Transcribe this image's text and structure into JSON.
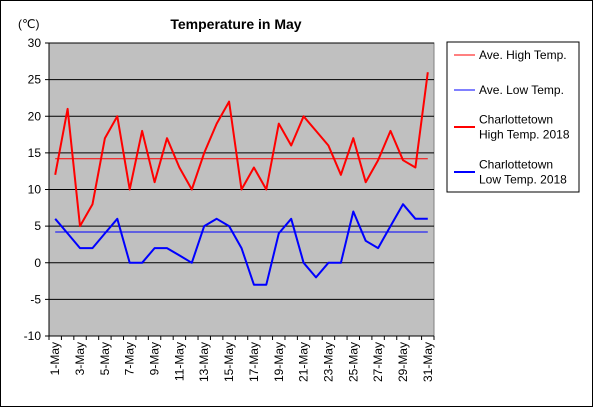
{
  "chart_data": {
    "type": "line",
    "title": "Temperature in May",
    "ylabel": "(℃)",
    "ylim": [
      -10,
      30
    ],
    "yticks": [
      30,
      25,
      20,
      15,
      10,
      5,
      0,
      -5,
      -10
    ],
    "grid": "horizontal",
    "legend_position": "right",
    "x_categories": [
      "1-May",
      "2-May",
      "3-May",
      "4-May",
      "5-May",
      "6-May",
      "7-May",
      "8-May",
      "9-May",
      "10-May",
      "11-May",
      "12-May",
      "13-May",
      "14-May",
      "15-May",
      "16-May",
      "17-May",
      "18-May",
      "19-May",
      "20-May",
      "21-May",
      "22-May",
      "23-May",
      "24-May",
      "25-May",
      "26-May",
      "27-May",
      "28-May",
      "29-May",
      "30-May",
      "31-May"
    ],
    "x_tick_labels": [
      "1-May",
      "3-May",
      "5-May",
      "7-May",
      "9-May",
      "11-May",
      "13-May",
      "15-May",
      "17-May",
      "19-May",
      "21-May",
      "23-May",
      "25-May",
      "27-May",
      "29-May",
      "31-May"
    ],
    "series": [
      {
        "name": "Ave. High Temp.",
        "color": "#ff0000",
        "stroke": "thin",
        "values": [
          14.2,
          14.2,
          14.2,
          14.2,
          14.2,
          14.2,
          14.2,
          14.2,
          14.2,
          14.2,
          14.2,
          14.2,
          14.2,
          14.2,
          14.2,
          14.2,
          14.2,
          14.2,
          14.2,
          14.2,
          14.2,
          14.2,
          14.2,
          14.2,
          14.2,
          14.2,
          14.2,
          14.2,
          14.2,
          14.2,
          14.2
        ]
      },
      {
        "name": "Ave. Low Temp.",
        "color": "#0000ff",
        "stroke": "thin",
        "values": [
          4.2,
          4.2,
          4.2,
          4.2,
          4.2,
          4.2,
          4.2,
          4.2,
          4.2,
          4.2,
          4.2,
          4.2,
          4.2,
          4.2,
          4.2,
          4.2,
          4.2,
          4.2,
          4.2,
          4.2,
          4.2,
          4.2,
          4.2,
          4.2,
          4.2,
          4.2,
          4.2,
          4.2,
          4.2,
          4.2,
          4.2
        ]
      },
      {
        "name": "Charlottetown High Temp. 2018",
        "legend_lines": [
          "Charlottetown",
          "High Temp. 2018"
        ],
        "color": "#ff0000",
        "stroke": "thick",
        "values": [
          12,
          21,
          5,
          8,
          17,
          20,
          10,
          18,
          11,
          17,
          13,
          10,
          15,
          19,
          22,
          10,
          13,
          10,
          19,
          16,
          20,
          18,
          16,
          12,
          17,
          11,
          14,
          18,
          14,
          13,
          26
        ]
      },
      {
        "name": "Charlottetown Low Temp. 2018",
        "legend_lines": [
          "Charlottetown",
          "Low Temp. 2018"
        ],
        "color": "#0000ff",
        "stroke": "thick",
        "values": [
          6,
          4,
          2,
          2,
          4,
          6,
          0,
          0,
          2,
          2,
          1,
          0,
          5,
          6,
          5,
          2,
          -3,
          -3,
          4,
          6,
          0,
          -2,
          0,
          0,
          7,
          3,
          2,
          5,
          8,
          6,
          6
        ]
      }
    ]
  }
}
